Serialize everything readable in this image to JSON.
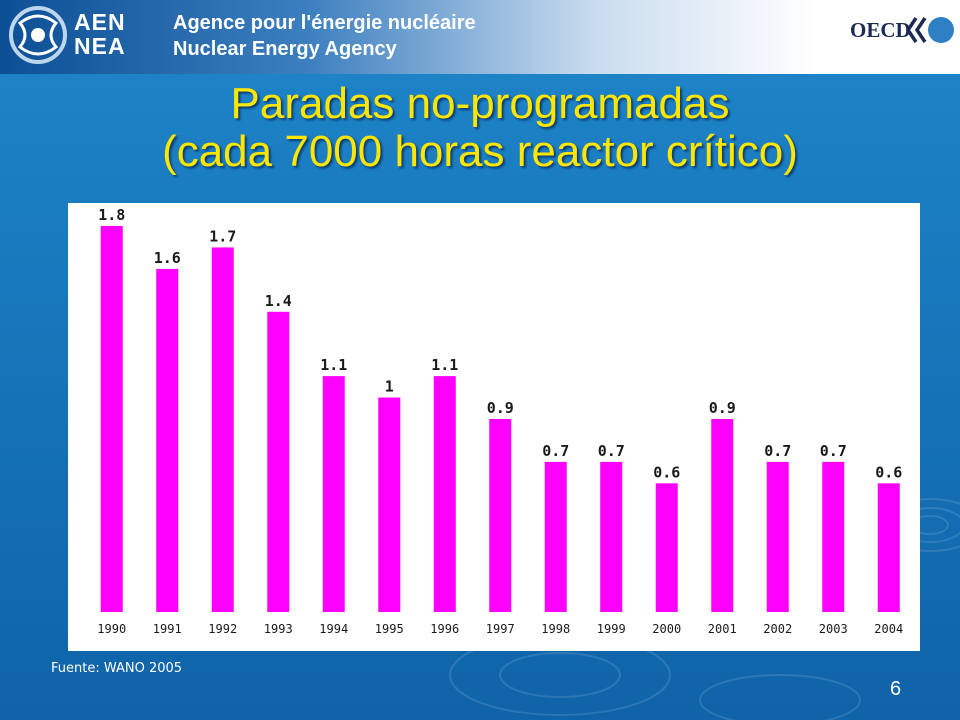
{
  "header": {
    "logo_text_line1": "AEN",
    "logo_text_line2": "NEA",
    "agency_name_fr": "Agence pour l'énergie nucléaire",
    "agency_name_en": "Nuclear Energy Agency",
    "oecd_label": "OECD"
  },
  "slide": {
    "title_line1": "Paradas no-programadas",
    "title_line2": "(cada 7000 horas reactor crítico)",
    "source": "Fuente: WANO 2005",
    "page_number": "6"
  },
  "colors": {
    "background": "#1878bd",
    "title": "#ffe600",
    "bar": "#ff00ff",
    "panel": "#ffffff"
  },
  "chart_data": {
    "type": "bar",
    "categories": [
      "1990",
      "1991",
      "1992",
      "1993",
      "1994",
      "1995",
      "1996",
      "1997",
      "1998",
      "1999",
      "2000",
      "2001",
      "2002",
      "2003",
      "2004"
    ],
    "values": [
      1.8,
      1.6,
      1.7,
      1.4,
      1.1,
      1,
      1.1,
      0.9,
      0.7,
      0.7,
      0.6,
      0.9,
      0.7,
      0.7,
      0.6
    ],
    "value_labels": [
      "1.8",
      "1.6",
      "1.7",
      "1.4",
      "1.1",
      "1",
      "1.1",
      "0.9",
      "0.7",
      "0.7",
      "0.6",
      "0.9",
      "0.7",
      "0.7",
      "0.6"
    ],
    "title": "",
    "xlabel": "",
    "ylabel": "",
    "ylim": [
      0,
      1.8
    ],
    "grid": false,
    "legend": "none",
    "bar_color": "#ff00ff"
  }
}
